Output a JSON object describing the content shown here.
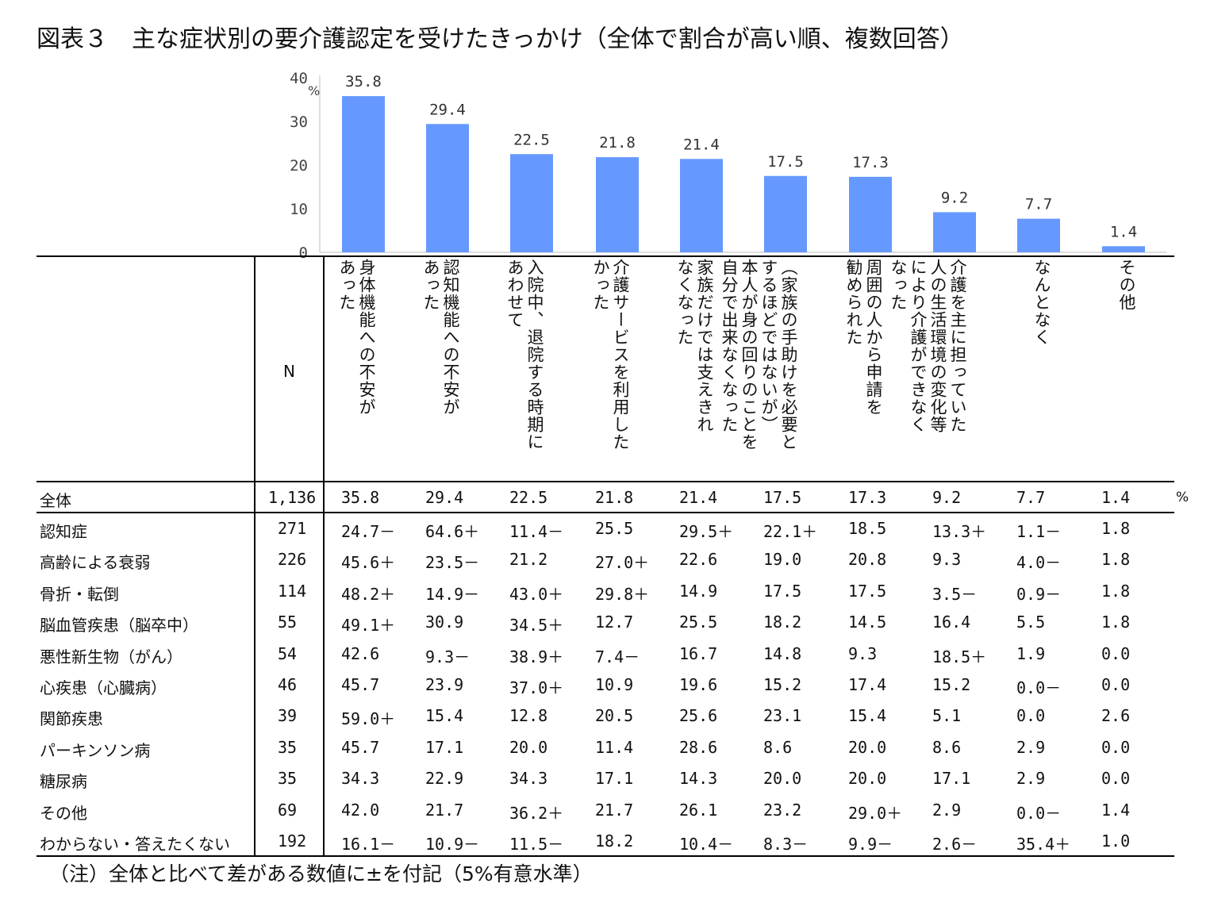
{
  "title": "図表３　主な症状別の要介護認定を受けたきっかけ（全体で割合が高い順、複数回答）",
  "note": "（注）全体と比べて差がある数値に±を付記（5%有意水準）",
  "table": {
    "n_header": "N",
    "unit": "%",
    "columns": [
      "身体機能への不安が\nあった",
      "認知機能への不安が\nあった",
      "入院中、退院する時期に\nあわせて",
      "介護サービスを利用した\nかった",
      "家族だけでは支えきれ\nなくなった",
      "（家族の手助けを必要と\nするほどではないが）\n本人が身の回りのことを\n自分で出来なくなった",
      "周囲の人から申請を\n勧められた",
      "介護を主に担っていた\n人の生活環境の変化等\nにより介護ができなく\nなった",
      "なんとなく",
      "その他"
    ],
    "total_row": {
      "label": "全体",
      "n": "1,136",
      "values": [
        "35.8",
        "29.4",
        "22.5",
        "21.8",
        "21.4",
        "17.5",
        "17.3",
        "9.2",
        "7.7",
        "1.4"
      ]
    },
    "rows": [
      {
        "label": "認知症",
        "n": "271",
        "values": [
          "24.7－",
          "64.6＋",
          "11.4－",
          "25.5",
          "29.5＋",
          "22.1＋",
          "18.5",
          "13.3＋",
          "1.1－",
          "1.8"
        ]
      },
      {
        "label": "高齢による衰弱",
        "n": "226",
        "values": [
          "45.6＋",
          "23.5－",
          "21.2",
          "27.0＋",
          "22.6",
          "19.0",
          "20.8",
          "9.3",
          "4.0－",
          "1.8"
        ]
      },
      {
        "label": "骨折・転倒",
        "n": "114",
        "values": [
          "48.2＋",
          "14.9－",
          "43.0＋",
          "29.8＋",
          "14.9",
          "17.5",
          "17.5",
          "3.5－",
          "0.9－",
          "1.8"
        ]
      },
      {
        "label": "脳血管疾患（脳卒中）",
        "n": "55",
        "values": [
          "49.1＋",
          "30.9",
          "34.5＋",
          "12.7",
          "25.5",
          "18.2",
          "14.5",
          "16.4",
          "5.5",
          "1.8"
        ]
      },
      {
        "label": "悪性新生物（がん）",
        "n": "54",
        "values": [
          "42.6",
          "9.3－",
          "38.9＋",
          "7.4－",
          "16.7",
          "14.8",
          "9.3",
          "18.5＋",
          "1.9",
          "0.0"
        ]
      },
      {
        "label": "心疾患（心臓病）",
        "n": "46",
        "values": [
          "45.7",
          "23.9",
          "37.0＋",
          "10.9",
          "19.6",
          "15.2",
          "17.4",
          "15.2",
          "0.0－",
          "0.0"
        ]
      },
      {
        "label": "関節疾患",
        "n": "39",
        "values": [
          "59.0＋",
          "15.4",
          "12.8",
          "20.5",
          "25.6",
          "23.1",
          "15.4",
          "5.1",
          "0.0",
          "2.6"
        ]
      },
      {
        "label": "パーキンソン病",
        "n": "35",
        "values": [
          "45.7",
          "17.1",
          "20.0",
          "11.4",
          "28.6",
          "8.6",
          "20.0",
          "8.6",
          "2.9",
          "0.0"
        ]
      },
      {
        "label": "糖尿病",
        "n": "35",
        "values": [
          "34.3",
          "22.9",
          "34.3",
          "17.1",
          "14.3",
          "20.0",
          "20.0",
          "17.1",
          "2.9",
          "0.0"
        ]
      },
      {
        "label": "その他",
        "n": "69",
        "values": [
          "42.0",
          "21.7",
          "36.2＋",
          "21.7",
          "26.1",
          "23.2",
          "29.0＋",
          "2.9",
          "0.0－",
          "1.4"
        ]
      },
      {
        "label": "わからない・答えたくない",
        "n": "192",
        "values": [
          "16.1－",
          "10.9－",
          "11.5－",
          "18.2",
          "10.4－",
          "8.3－",
          "9.9－",
          "2.6－",
          "35.4＋",
          "1.0"
        ]
      }
    ]
  },
  "chart_data": {
    "type": "bar",
    "values": [
      35.8,
      29.4,
      22.5,
      21.8,
      21.4,
      17.5,
      17.3,
      9.2,
      7.7,
      1.4
    ],
    "value_labels": [
      "35.8",
      "29.4",
      "22.5",
      "21.8",
      "21.4",
      "17.5",
      "17.3",
      "9.2",
      "7.7",
      "1.4"
    ],
    "ylim": [
      0,
      40
    ],
    "yticks": [
      "0",
      "10",
      "20",
      "30",
      "40"
    ],
    "yunit": "%",
    "bar_color": "#6699ff",
    "grid": false
  }
}
